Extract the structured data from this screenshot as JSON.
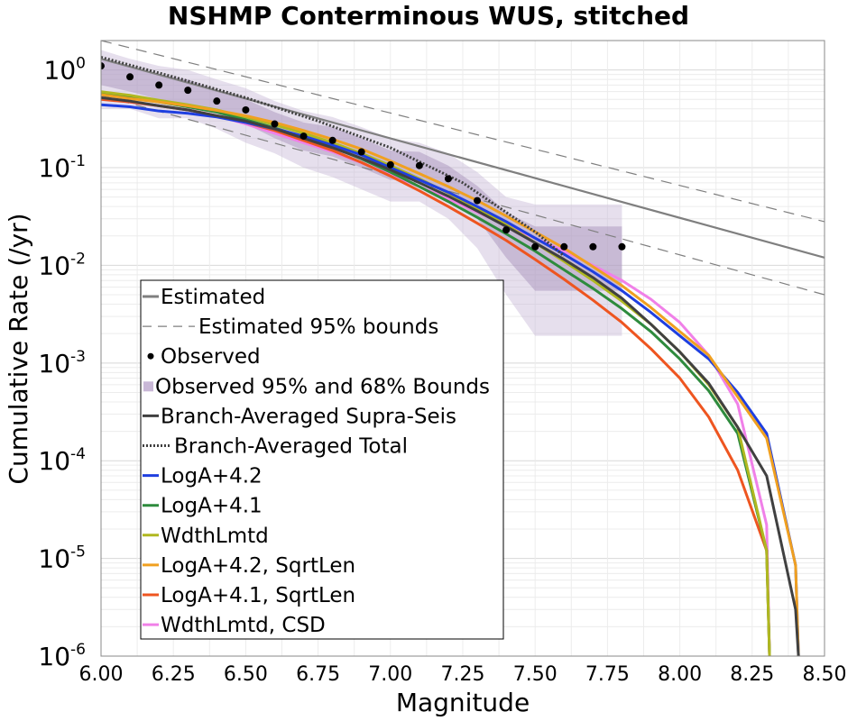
{
  "chart_data": {
    "type": "line",
    "title": "NSHMP Conterminous WUS, stitched",
    "xlabel": "Magnitude",
    "ylabel": "Cumulative Rate (/yr)",
    "xlim": [
      6.0,
      8.5
    ],
    "ylim": [
      1e-06,
      2.0
    ],
    "yscale": "log",
    "grid": true,
    "legend_position": "lower-left",
    "x_ticks": [
      "6.00",
      "6.25",
      "6.50",
      "6.75",
      "7.00",
      "7.25",
      "7.50",
      "7.75",
      "8.00",
      "8.25",
      "8.50"
    ],
    "x_tick_values": [
      6.0,
      6.25,
      6.5,
      6.75,
      7.0,
      7.25,
      7.5,
      7.75,
      8.0,
      8.25,
      8.5
    ],
    "y_ticks": [
      {
        "base": "10",
        "exp": "0",
        "value": 1
      },
      {
        "base": "10",
        "exp": "-1",
        "value": 0.1
      },
      {
        "base": "10",
        "exp": "-2",
        "value": 0.01
      },
      {
        "base": "10",
        "exp": "-3",
        "value": 0.001
      },
      {
        "base": "10",
        "exp": "-4",
        "value": 0.0001
      },
      {
        "base": "10",
        "exp": "-5",
        "value": 1e-05
      },
      {
        "base": "10",
        "exp": "-6",
        "value": 1e-06
      }
    ],
    "legend": [
      {
        "label": "Estimated",
        "kind": "line",
        "color": "#7f7f7f"
      },
      {
        "label": "Estimated 95% bounds",
        "kind": "dashed",
        "color": "#7f7f7f"
      },
      {
        "label": "Observed",
        "kind": "dot",
        "color": "#000000"
      },
      {
        "label": "Observed 95% and 68% Bounds",
        "kind": "box",
        "color": "#c8b7d6"
      },
      {
        "label": "Branch-Averaged Supra-Seis",
        "kind": "line",
        "color": "#404040"
      },
      {
        "label": "Branch-Averaged Total",
        "kind": "dotted",
        "color": "#404040"
      },
      {
        "label": "LogA+4.2",
        "kind": "line",
        "color": "#1f3fe0"
      },
      {
        "label": "LogA+4.1",
        "kind": "line",
        "color": "#2e8b3d"
      },
      {
        "label": "WdthLmtd",
        "kind": "line",
        "color": "#b0b820"
      },
      {
        "label": "LogA+4.2, SqrtLen",
        "kind": "line",
        "color": "#f0a020"
      },
      {
        "label": "LogA+4.1, SqrtLen",
        "kind": "line",
        "color": "#ee5520"
      },
      {
        "label": "WdthLmtd, CSD",
        "kind": "line",
        "color": "#f080e8"
      }
    ],
    "estimated": {
      "x": [
        6.0,
        8.5
      ],
      "y": [
        1.3,
        0.012
      ],
      "lower": [
        0.55,
        0.005
      ],
      "upper": [
        2.0,
        0.028
      ]
    },
    "observed": {
      "x": [
        6.0,
        6.1,
        6.2,
        6.3,
        6.4,
        6.5,
        6.6,
        6.7,
        6.8,
        6.9,
        7.0,
        7.1,
        7.2,
        7.3,
        7.4,
        7.5,
        7.6,
        7.7,
        7.8
      ],
      "y": [
        1.1,
        0.85,
        0.7,
        0.62,
        0.48,
        0.39,
        0.28,
        0.21,
        0.19,
        0.145,
        0.107,
        0.105,
        0.077,
        0.046,
        0.023,
        0.0155,
        0.0155,
        0.0155,
        0.0155
      ],
      "bounds95_lower": [
        0.4,
        0.4,
        0.32,
        0.32,
        0.25,
        0.18,
        0.14,
        0.1,
        0.08,
        0.06,
        0.045,
        0.045,
        0.03,
        0.015,
        0.005,
        0.0019,
        0.0019,
        0.0019,
        0.0019
      ],
      "bounds95_upper": [
        1.6,
        1.3,
        1.1,
        1.0,
        0.8,
        0.65,
        0.48,
        0.38,
        0.33,
        0.26,
        0.2,
        0.18,
        0.14,
        0.09,
        0.05,
        0.042,
        0.042,
        0.042,
        0.042
      ],
      "bounds68_lower": [
        0.7,
        0.6,
        0.5,
        0.45,
        0.36,
        0.28,
        0.2,
        0.15,
        0.13,
        0.1,
        0.075,
        0.075,
        0.05,
        0.03,
        0.012,
        0.0055,
        0.0055,
        0.0055,
        0.0055
      ],
      "bounds68_upper": [
        1.3,
        1.1,
        0.9,
        0.8,
        0.62,
        0.5,
        0.37,
        0.29,
        0.26,
        0.2,
        0.15,
        0.145,
        0.105,
        0.065,
        0.035,
        0.025,
        0.025,
        0.025,
        0.025
      ]
    },
    "series": [
      {
        "name": "Branch-Averaged Total",
        "color": "#404040",
        "style": "dotted",
        "x": [
          6.0,
          6.25,
          6.5,
          6.75,
          7.0,
          7.25,
          7.5,
          7.6
        ],
        "y": [
          1.35,
          0.85,
          0.52,
          0.3,
          0.16,
          0.07,
          0.022,
          0.0125
        ]
      },
      {
        "name": "Branch-Averaged Supra-Seis",
        "color": "#404040",
        "style": "solid",
        "x": [
          6.0,
          6.1,
          6.2,
          6.3,
          6.4,
          6.5,
          6.6,
          6.7,
          6.8,
          6.9,
          7.0,
          7.1,
          7.2,
          7.3,
          7.4,
          7.5,
          7.6,
          7.7,
          7.8,
          7.9,
          8.0,
          8.1,
          8.2,
          8.3,
          8.4,
          8.41
        ],
        "y": [
          0.52,
          0.48,
          0.43,
          0.39,
          0.34,
          0.3,
          0.25,
          0.2,
          0.16,
          0.125,
          0.095,
          0.07,
          0.051,
          0.036,
          0.025,
          0.017,
          0.0115,
          0.0075,
          0.0046,
          0.0025,
          0.0013,
          0.00062,
          0.00022,
          7e-05,
          3e-06,
          1e-06
        ]
      },
      {
        "name": "LogA+4.2",
        "color": "#1f3fe0",
        "style": "solid",
        "x": [
          6.0,
          6.1,
          6.2,
          6.3,
          6.4,
          6.5,
          6.6,
          6.7,
          6.8,
          6.9,
          7.0,
          7.1,
          7.2,
          7.3,
          7.4,
          7.5,
          7.6,
          7.7,
          7.8,
          7.9,
          8.0,
          8.1,
          8.2,
          8.3,
          8.4,
          8.41
        ],
        "y": [
          0.44,
          0.42,
          0.38,
          0.36,
          0.33,
          0.29,
          0.25,
          0.21,
          0.17,
          0.135,
          0.1,
          0.075,
          0.056,
          0.04,
          0.028,
          0.019,
          0.013,
          0.0086,
          0.0055,
          0.0033,
          0.0019,
          0.0011,
          0.0005,
          0.00019,
          8.5e-06,
          1e-06
        ]
      },
      {
        "name": "LogA+4.1",
        "color": "#2e8b3d",
        "style": "solid",
        "x": [
          6.0,
          6.1,
          6.2,
          6.3,
          6.4,
          6.5,
          6.6,
          6.7,
          6.8,
          6.9,
          7.0,
          7.1,
          7.2,
          7.3,
          7.4,
          7.5,
          7.6,
          7.7,
          7.8,
          7.9,
          8.0,
          8.1,
          8.2,
          8.3,
          8.31
        ],
        "y": [
          0.58,
          0.52,
          0.47,
          0.42,
          0.37,
          0.31,
          0.255,
          0.205,
          0.162,
          0.123,
          0.09,
          0.064,
          0.045,
          0.031,
          0.021,
          0.014,
          0.009,
          0.0058,
          0.0036,
          0.0021,
          0.0011,
          0.00052,
          0.00019,
          1.2e-05,
          1e-06
        ]
      },
      {
        "name": "WdthLmtd",
        "color": "#b0b820",
        "style": "solid",
        "x": [
          6.0,
          6.1,
          6.2,
          6.3,
          6.4,
          6.5,
          6.6,
          6.7,
          6.8,
          6.9,
          7.0,
          7.1,
          7.2,
          7.3,
          7.4,
          7.5,
          7.6,
          7.7,
          7.8,
          7.9,
          8.0,
          8.1,
          8.2,
          8.3,
          8.31
        ],
        "y": [
          0.6,
          0.55,
          0.49,
          0.44,
          0.39,
          0.33,
          0.275,
          0.225,
          0.18,
          0.14,
          0.105,
          0.077,
          0.055,
          0.038,
          0.026,
          0.017,
          0.011,
          0.007,
          0.0043,
          0.0025,
          0.0013,
          0.0006,
          0.00022,
          1.2e-05,
          1e-06
        ]
      },
      {
        "name": "LogA+4.2, SqrtLen",
        "color": "#f0a020",
        "style": "solid",
        "x": [
          6.0,
          6.1,
          6.2,
          6.3,
          6.4,
          6.5,
          6.6,
          6.7,
          6.8,
          6.9,
          7.0,
          7.1,
          7.2,
          7.3,
          7.4,
          7.5,
          7.6,
          7.7,
          7.8,
          7.9,
          8.0,
          8.1,
          8.2,
          8.3,
          8.4,
          8.41
        ],
        "y": [
          0.56,
          0.51,
          0.47,
          0.43,
          0.385,
          0.34,
          0.29,
          0.24,
          0.195,
          0.155,
          0.117,
          0.087,
          0.064,
          0.046,
          0.032,
          0.022,
          0.015,
          0.0097,
          0.0062,
          0.0037,
          0.0021,
          0.0012,
          0.00045,
          0.00017,
          8.5e-06,
          1e-06
        ]
      },
      {
        "name": "LogA+4.1, SqrtLen",
        "color": "#ee5520",
        "style": "solid",
        "x": [
          6.0,
          6.1,
          6.2,
          6.3,
          6.4,
          6.5,
          6.6,
          6.7,
          6.8,
          6.9,
          7.0,
          7.1,
          7.2,
          7.3,
          7.4,
          7.5,
          7.6,
          7.7,
          7.8,
          7.9,
          8.0,
          8.1,
          8.2,
          8.3,
          8.31
        ],
        "y": [
          0.5,
          0.47,
          0.43,
          0.39,
          0.34,
          0.29,
          0.24,
          0.19,
          0.15,
          0.113,
          0.082,
          0.058,
          0.04,
          0.027,
          0.018,
          0.0115,
          0.0072,
          0.0044,
          0.0026,
          0.0014,
          0.0007,
          0.00028,
          8e-05,
          1.2e-05,
          1e-06
        ]
      },
      {
        "name": "WdthLmtd, CSD",
        "color": "#f080e8",
        "style": "solid",
        "x": [
          6.0,
          6.1,
          6.2,
          6.3,
          6.4,
          6.5,
          6.6,
          6.7,
          6.8,
          6.9,
          7.0,
          7.1,
          7.2,
          7.3,
          7.4,
          7.5,
          7.6,
          7.7,
          7.8,
          7.9,
          8.0,
          8.1,
          8.2,
          8.3,
          8.31
        ],
        "y": [
          0.52,
          0.47,
          0.43,
          0.39,
          0.34,
          0.28,
          0.225,
          0.18,
          0.145,
          0.112,
          0.085,
          0.064,
          0.048,
          0.035,
          0.026,
          0.019,
          0.014,
          0.01,
          0.007,
          0.0045,
          0.0026,
          0.0012,
          0.00038,
          2.2e-05,
          1e-06
        ]
      }
    ]
  }
}
